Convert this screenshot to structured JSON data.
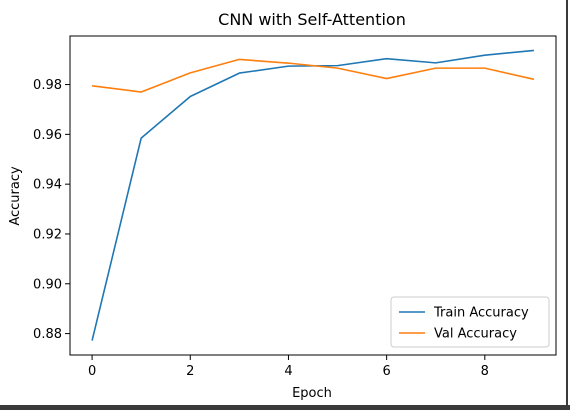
{
  "chart_data": {
    "type": "line",
    "title": "CNN with Self-Attention",
    "xlabel": "Epoch",
    "ylabel": "Accuracy",
    "xlim": [
      -0.45,
      9.45
    ],
    "ylim": [
      0.8714,
      0.9995
    ],
    "x_ticks": [
      0,
      2,
      4,
      6,
      8
    ],
    "y_ticks": [
      0.88,
      0.9,
      0.92,
      0.94,
      0.96,
      0.98
    ],
    "y_tick_labels": [
      "0.88",
      "0.90",
      "0.92",
      "0.94",
      "0.96",
      "0.98"
    ],
    "legend_position": "lower right",
    "grid": false,
    "x": [
      0,
      1,
      2,
      3,
      4,
      5,
      6,
      7,
      8,
      9
    ],
    "series": [
      {
        "name": "Train Accuracy",
        "color": "#1f77b4",
        "values": [
          0.8772,
          0.9585,
          0.9752,
          0.9846,
          0.9874,
          0.9876,
          0.9904,
          0.9887,
          0.9918,
          0.9937
        ]
      },
      {
        "name": "Val Accuracy",
        "color": "#ff7f0e",
        "values": [
          0.9795,
          0.977,
          0.9847,
          0.9901,
          0.9886,
          0.9866,
          0.9824,
          0.9866,
          0.9866,
          0.9821
        ]
      }
    ]
  }
}
